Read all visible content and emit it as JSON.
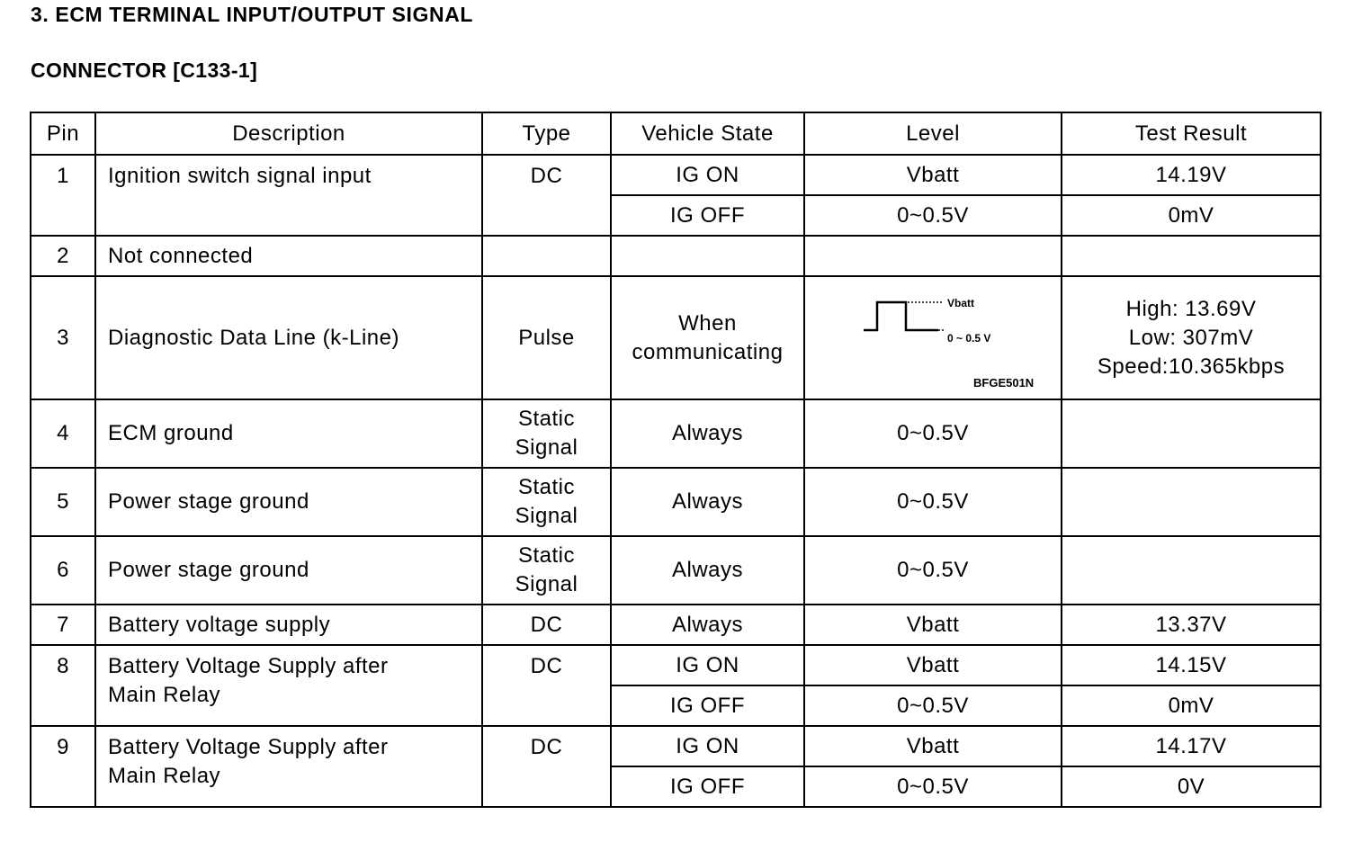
{
  "title": "3. ECM TERMINAL INPUT/OUTPUT SIGNAL",
  "connector": "CONNECTOR [C133-1]",
  "headers": [
    "Pin",
    "Description",
    "Type",
    "Vehicle State",
    "Level",
    "Test Result"
  ],
  "rows": [
    {
      "pin": "1",
      "description": "Ignition switch signal input",
      "type": "DC",
      "states": [
        {
          "state": "IG ON",
          "level": "Vbatt",
          "result": "14.19V"
        },
        {
          "state": "IG OFF",
          "level": "0~0.5V",
          "result": "0mV"
        }
      ]
    },
    {
      "pin": "2",
      "description": "Not connected",
      "type": "",
      "states": [
        {
          "state": "",
          "level": "",
          "result": ""
        }
      ]
    },
    {
      "pin": "3",
      "description": "Diagnostic Data Line (k-Line)",
      "type": "Pulse",
      "states": [
        {
          "state": "When communicating",
          "level_waveform": {
            "high_label": "Vbatt",
            "low_label": "0 ~ 0.5 V",
            "figure_code": "BFGE501N"
          },
          "result_lines": [
            "High:  13.69V",
            "Low:  307mV",
            "Speed:10.365kbps"
          ]
        }
      ]
    },
    {
      "pin": "4",
      "description": "ECM ground",
      "type": "Static Signal",
      "states": [
        {
          "state": "Always",
          "level": "0~0.5V",
          "result": ""
        }
      ]
    },
    {
      "pin": "5",
      "description": "Power stage ground",
      "type": "Static Signal",
      "states": [
        {
          "state": "Always",
          "level": "0~0.5V",
          "result": ""
        }
      ]
    },
    {
      "pin": "6",
      "description": "Power stage ground",
      "type": "Static Signal",
      "states": [
        {
          "state": "Always",
          "level": "0~0.5V",
          "result": ""
        }
      ]
    },
    {
      "pin": "7",
      "description": "Battery voltage supply",
      "type": "DC",
      "states": [
        {
          "state": "Always",
          "level": "Vbatt",
          "result": "13.37V"
        }
      ]
    },
    {
      "pin": "8",
      "description": "Battery Voltage Supply after Main Relay",
      "type": "DC",
      "states": [
        {
          "state": "IG ON",
          "level": "Vbatt",
          "result": "14.15V"
        },
        {
          "state": "IG OFF",
          "level": "0~0.5V",
          "result": "0mV"
        }
      ]
    },
    {
      "pin": "9",
      "description": "Battery Voltage Supply after Main Relay",
      "type": "DC",
      "states": [
        {
          "state": "IG ON",
          "level": "Vbatt",
          "result": "14.17V"
        },
        {
          "state": "IG OFF",
          "level": "0~0.5V",
          "result": "0V"
        }
      ]
    }
  ]
}
